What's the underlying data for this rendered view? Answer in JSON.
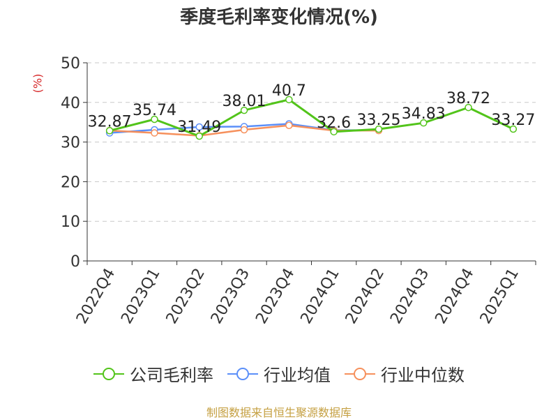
{
  "chart_data": {
    "type": "line",
    "title": "季度毛利率变化情况(%)",
    "ylabel": "(%)",
    "xlabel": "",
    "categories": [
      "2022Q4",
      "2023Q1",
      "2023Q2",
      "2023Q3",
      "2023Q4",
      "2024Q1",
      "2024Q2",
      "2024Q3",
      "2024Q4",
      "2025Q1"
    ],
    "ylim": [
      0,
      50
    ],
    "yticks": [
      "0",
      "10",
      "20",
      "30",
      "40",
      "50"
    ],
    "grid": true,
    "legend_position": "bottom",
    "series": [
      {
        "name": "公司毛利率",
        "color": "#52c41a",
        "values": [
          32.87,
          35.74,
          31.49,
          38.01,
          40.7,
          32.6,
          33.25,
          34.83,
          38.72,
          33.27
        ],
        "labels": [
          "32.87",
          "35.74",
          "31.49",
          "38.01",
          "40.7",
          "32.6",
          "33.25",
          "34.83",
          "38.72",
          "33.27"
        ]
      },
      {
        "name": "行业均值",
        "color": "#5b8ff9",
        "values": [
          32.3,
          33.1,
          33.8,
          33.9,
          34.6,
          33.0,
          33.0,
          null,
          null,
          null
        ]
      },
      {
        "name": "行业中位数",
        "color": "#f6905c",
        "values": [
          32.9,
          32.3,
          31.6,
          33.1,
          34.2,
          32.9,
          32.9,
          null,
          null,
          null
        ]
      }
    ]
  },
  "source_text": "制图数据来自恒生聚源数据库"
}
